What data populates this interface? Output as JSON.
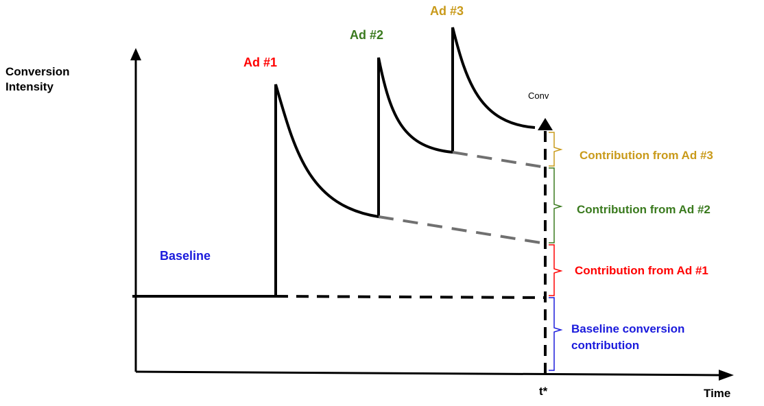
{
  "labels": {
    "y_axis": [
      "Conversion",
      "Intensity"
    ],
    "x_axis": "Time",
    "t_star": "t*",
    "conv": "Conv",
    "baseline": "Baseline",
    "ad1": "Ad #1",
    "ad2": "Ad #2",
    "ad3": "Ad #3"
  },
  "contributions": {
    "ad3": "Contribution from Ad #3",
    "ad2": "Contribution from Ad #2",
    "ad1": "Contribution from Ad #1",
    "baseline": [
      "Baseline conversion",
      "contribution"
    ]
  },
  "colors": {
    "ad1": "#ff0000",
    "ad2": "#3a7a1e",
    "ad3": "#c99a1a",
    "baseline": "#1a1adc",
    "curve": "#000000",
    "projection": "#707070"
  }
}
